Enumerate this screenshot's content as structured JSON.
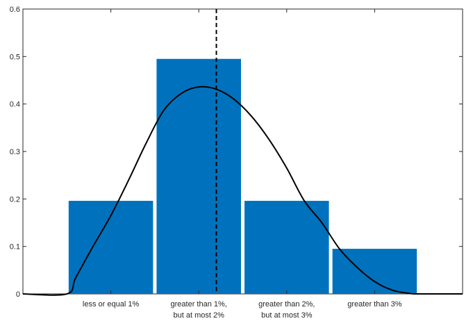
{
  "chart_data": {
    "type": "bar",
    "categories": [
      [
        "less or equal 1%"
      ],
      [
        "greater than 1%,",
        "but at most 2%"
      ],
      [
        "greater than 2%,",
        "but at most 3%"
      ],
      [
        "greater than 3%"
      ]
    ],
    "values": [
      0.196,
      0.495,
      0.196,
      0.095
    ],
    "bar_color": "#0072BD",
    "ylim": [
      0,
      0.6
    ],
    "yticks": [
      "0",
      "0.1",
      "0.2",
      "0.3",
      "0.4",
      "0.5",
      "0.6"
    ],
    "xlim": [
      0,
      5
    ],
    "curve": {
      "type": "line",
      "color": "#000000",
      "x": [
        0,
        0.5,
        0.6,
        0.8,
        1.0,
        1.2,
        1.4,
        1.6,
        1.8,
        2.0,
        2.2,
        2.4,
        2.6,
        2.8,
        3.0,
        3.2,
        3.4,
        3.6,
        3.8,
        4.0,
        4.2,
        4.4,
        4.5,
        5
      ],
      "y": [
        0,
        0,
        0.034,
        0.101,
        0.165,
        0.239,
        0.317,
        0.386,
        0.422,
        0.436,
        0.431,
        0.41,
        0.374,
        0.325,
        0.265,
        0.196,
        0.15,
        0.095,
        0.056,
        0.026,
        0.008,
        0.001,
        0,
        0
      ]
    },
    "reference_line": {
      "x": 2.2,
      "style": "dashed",
      "color": "#000000"
    },
    "grid": false
  }
}
